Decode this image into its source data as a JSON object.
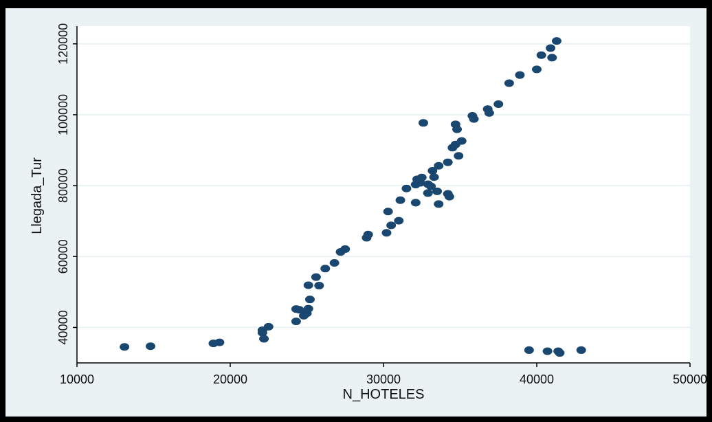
{
  "chart_data": {
    "type": "scatter",
    "title": "",
    "xlabel": "N_HOTELES",
    "ylabel": "Llegada_Tur",
    "xlim": [
      10000,
      50000
    ],
    "ylim": [
      30000,
      125000
    ],
    "xticks": [
      10000,
      20000,
      30000,
      40000,
      50000
    ],
    "yticks": [
      40000,
      60000,
      80000,
      100000,
      120000
    ],
    "x_tick_labels": [
      "10000",
      "20000",
      "30000",
      "40000",
      "50000"
    ],
    "y_tick_labels": [
      "40000",
      "60000",
      "80000",
      "100000",
      "120000"
    ],
    "grid": true,
    "legend": "none",
    "colors": {
      "marker": "#1a476f",
      "plot_bg": "#ffffff",
      "outer_bg": "#eaf2f3",
      "grid": "#eaf2f3",
      "frame": "#000000"
    },
    "points": [
      {
        "x": 13100,
        "y": 34500
      },
      {
        "x": 14800,
        "y": 34700
      },
      {
        "x": 18900,
        "y": 35500
      },
      {
        "x": 19300,
        "y": 35800
      },
      {
        "x": 22100,
        "y": 38500
      },
      {
        "x": 22100,
        "y": 39200
      },
      {
        "x": 22200,
        "y": 36800
      },
      {
        "x": 22500,
        "y": 40200
      },
      {
        "x": 24300,
        "y": 41700
      },
      {
        "x": 24300,
        "y": 45200
      },
      {
        "x": 24500,
        "y": 45000
      },
      {
        "x": 24800,
        "y": 43300
      },
      {
        "x": 25000,
        "y": 44000
      },
      {
        "x": 25100,
        "y": 45300
      },
      {
        "x": 25100,
        "y": 51900
      },
      {
        "x": 25200,
        "y": 47900
      },
      {
        "x": 25600,
        "y": 54200
      },
      {
        "x": 25800,
        "y": 51800
      },
      {
        "x": 26200,
        "y": 56600
      },
      {
        "x": 26800,
        "y": 58200
      },
      {
        "x": 27200,
        "y": 61300
      },
      {
        "x": 27500,
        "y": 62100
      },
      {
        "x": 28900,
        "y": 65300
      },
      {
        "x": 29000,
        "y": 66200
      },
      {
        "x": 30200,
        "y": 66700
      },
      {
        "x": 30300,
        "y": 72700
      },
      {
        "x": 30500,
        "y": 68800
      },
      {
        "x": 31000,
        "y": 70100
      },
      {
        "x": 31100,
        "y": 75900
      },
      {
        "x": 31500,
        "y": 79200
      },
      {
        "x": 32100,
        "y": 75200
      },
      {
        "x": 32100,
        "y": 80300
      },
      {
        "x": 32200,
        "y": 81800
      },
      {
        "x": 32400,
        "y": 80800
      },
      {
        "x": 32500,
        "y": 82300
      },
      {
        "x": 32600,
        "y": 97700
      },
      {
        "x": 32900,
        "y": 77900
      },
      {
        "x": 32900,
        "y": 80400
      },
      {
        "x": 33100,
        "y": 79800
      },
      {
        "x": 33200,
        "y": 84200
      },
      {
        "x": 33300,
        "y": 82400
      },
      {
        "x": 33500,
        "y": 78400
      },
      {
        "x": 33600,
        "y": 74800
      },
      {
        "x": 33600,
        "y": 85600
      },
      {
        "x": 34200,
        "y": 77700
      },
      {
        "x": 34200,
        "y": 86600
      },
      {
        "x": 34300,
        "y": 76900
      },
      {
        "x": 34500,
        "y": 90700
      },
      {
        "x": 34700,
        "y": 91600
      },
      {
        "x": 34700,
        "y": 97300
      },
      {
        "x": 34800,
        "y": 95900
      },
      {
        "x": 34900,
        "y": 88400
      },
      {
        "x": 35100,
        "y": 92600
      },
      {
        "x": 35800,
        "y": 99700
      },
      {
        "x": 35900,
        "y": 98800
      },
      {
        "x": 36800,
        "y": 101600
      },
      {
        "x": 36900,
        "y": 100500
      },
      {
        "x": 37500,
        "y": 103000
      },
      {
        "x": 38200,
        "y": 108900
      },
      {
        "x": 38900,
        "y": 111200
      },
      {
        "x": 39500,
        "y": 33600
      },
      {
        "x": 40000,
        "y": 112800
      },
      {
        "x": 40300,
        "y": 116800
      },
      {
        "x": 40700,
        "y": 33300
      },
      {
        "x": 40900,
        "y": 118800
      },
      {
        "x": 41000,
        "y": 116100
      },
      {
        "x": 41300,
        "y": 120800
      },
      {
        "x": 41400,
        "y": 33300
      },
      {
        "x": 41500,
        "y": 32800
      },
      {
        "x": 42900,
        "y": 33600
      }
    ]
  }
}
